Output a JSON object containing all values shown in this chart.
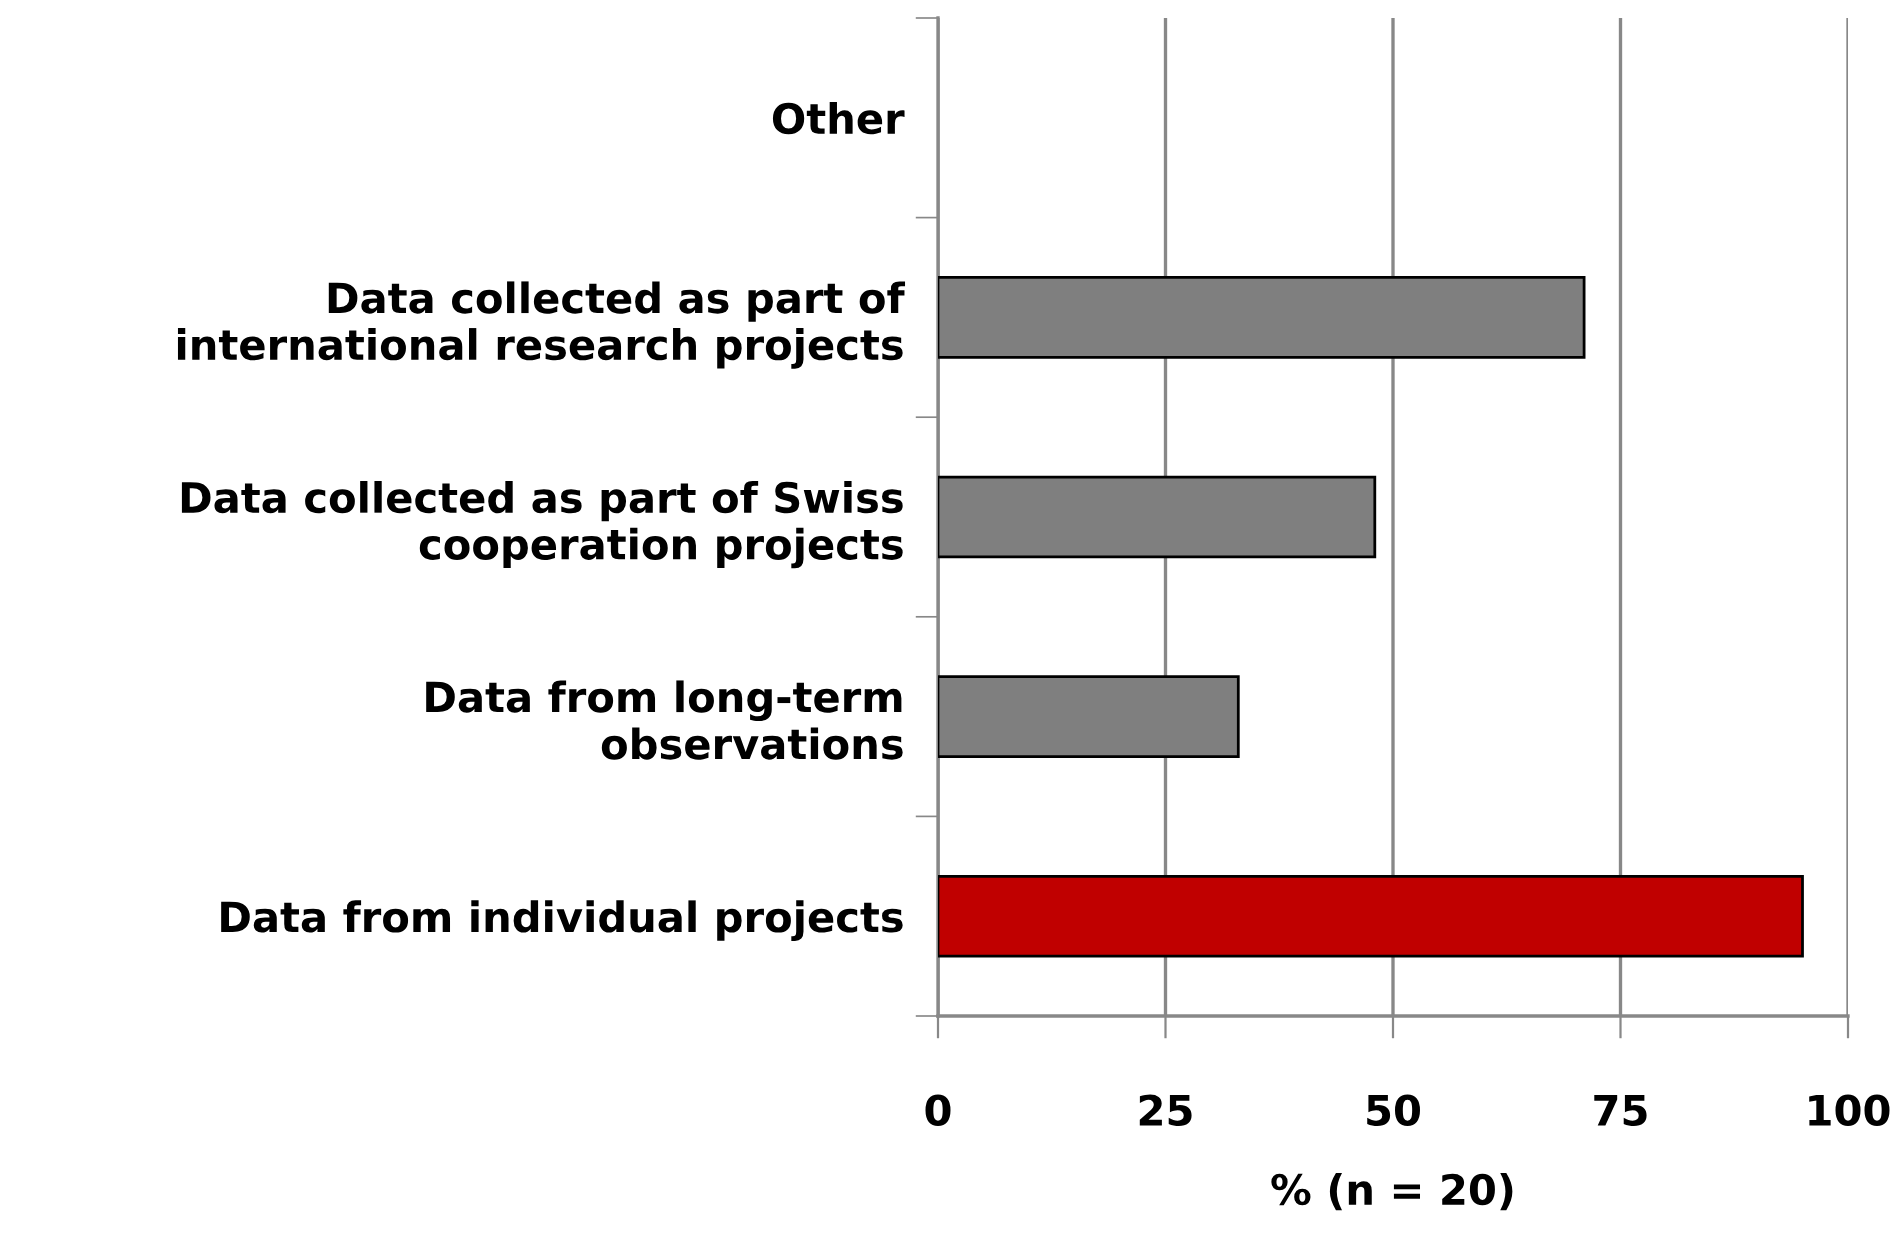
{
  "chart_data": {
    "type": "bar",
    "orientation": "horizontal",
    "xlabel": "% (n = 20)",
    "categories": [
      "Other",
      "Data collected as part of\ninternational research projects",
      "Data collected as part of Swiss\ncooperation projects",
      "Data from long-term\nobservations",
      "Data from individual projects"
    ],
    "values": [
      0,
      71,
      48,
      33,
      95
    ],
    "colors": [
      "#7f7f7f",
      "#7f7f7f",
      "#7f7f7f",
      "#7f7f7f",
      "#c00000"
    ],
    "xlim": [
      0,
      100
    ],
    "xticks": [
      0,
      25,
      50,
      75,
      100
    ],
    "grid": "x",
    "legend": false
  }
}
